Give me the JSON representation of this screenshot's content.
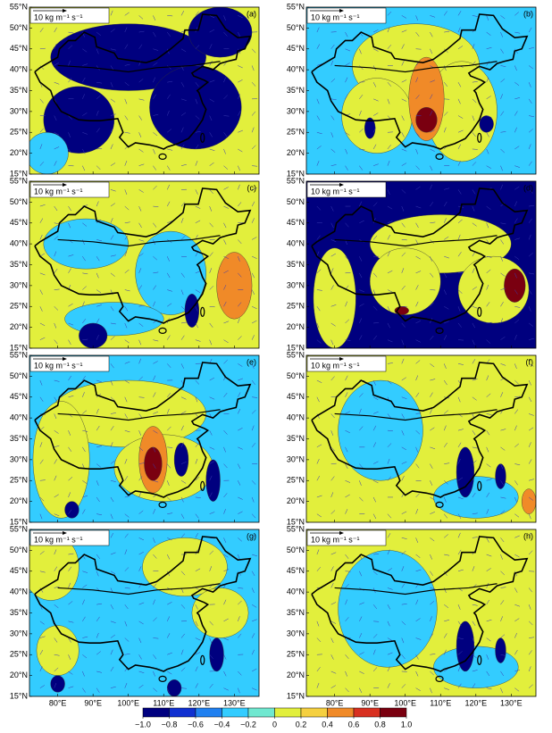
{
  "panels": [
    {
      "label": "(a)",
      "vector_key": "10 kg m⁻¹ s⁻¹"
    },
    {
      "label": "(b)",
      "vector_key": "10 kg m⁻¹ s⁻¹"
    },
    {
      "label": "(c)",
      "vector_key": "10 kg m⁻¹ s⁻¹"
    },
    {
      "label": "(d)",
      "vector_key": "10 kg m⁻¹ s⁻¹"
    },
    {
      "label": "(e)",
      "vector_key": "10 kg m⁻¹ s⁻¹"
    },
    {
      "label": "(f)",
      "vector_key": "10 kg m⁻¹ s⁻¹"
    },
    {
      "label": "(g)",
      "vector_key": "10 kg m⁻¹ s⁻¹"
    },
    {
      "label": "(h)",
      "vector_key": "10 kg m⁻¹ s⁻¹"
    }
  ],
  "lat_labels": [
    "55°N",
    "50°N",
    "45°N",
    "40°N",
    "35°N",
    "30°N",
    "25°N",
    "20°N",
    "15°N"
  ],
  "lon_labels": [
    "80°E",
    "90°E",
    "100°E",
    "110°E",
    "120°E",
    "130°E"
  ],
  "colorbar": {
    "lim": [
      -1,
      1
    ],
    "ticks": [
      {
        "value": -1,
        "label": "−1.0"
      },
      {
        "value": -0.8,
        "label": "−0.8"
      },
      {
        "value": -0.6,
        "label": "−0.6"
      },
      {
        "value": -0.4,
        "label": "−0.4"
      },
      {
        "value": -0.2,
        "label": "−0.2"
      },
      0,
      0.2,
      0.4,
      0.6,
      0.8,
      {
        "value": 1,
        "label": "1.0"
      }
    ],
    "colors": [
      "#00007f",
      "#1030d0",
      "#2080f0",
      "#33ccff",
      "#70e8d0",
      "#e2ef3c",
      "#f5d040",
      "#f08a28",
      "#d83020",
      "#7a0010"
    ]
  }
}
